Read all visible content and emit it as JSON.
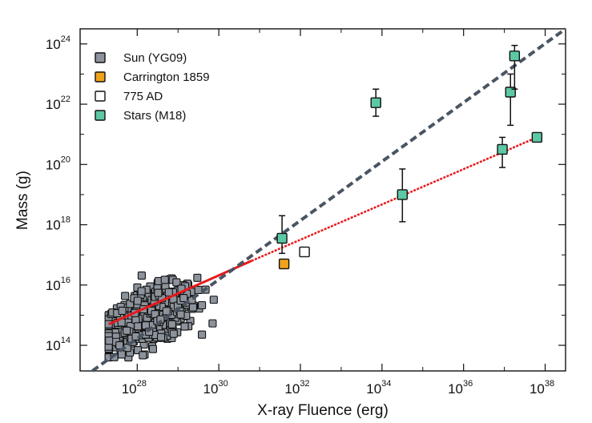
{
  "chart_data": {
    "type": "scatter",
    "xlabel": "X-ray Fluence (erg)",
    "ylabel": "Mass (g)",
    "x_scale": "log",
    "y_scale": "log",
    "xlim_log10": [
      26.6,
      38.5
    ],
    "ylim_log10": [
      13.15,
      24.5
    ],
    "x_ticks": [
      {
        "base": "10",
        "exp": "28",
        "v": 28
      },
      {
        "base": "10",
        "exp": "30",
        "v": 30
      },
      {
        "base": "10",
        "exp": "32",
        "v": 32
      },
      {
        "base": "10",
        "exp": "34",
        "v": 34
      },
      {
        "base": "10",
        "exp": "36",
        "v": 36
      },
      {
        "base": "10",
        "exp": "38",
        "v": 38
      }
    ],
    "y_ticks": [
      {
        "base": "10",
        "exp": "14",
        "v": 14
      },
      {
        "base": "10",
        "exp": "16",
        "v": 16
      },
      {
        "base": "10",
        "exp": "18",
        "v": 18
      },
      {
        "base": "10",
        "exp": "20",
        "v": 20
      },
      {
        "base": "10",
        "exp": "22",
        "v": 22
      },
      {
        "base": "10",
        "exp": "24",
        "v": 24
      }
    ],
    "legend_position": "top-left",
    "legend": [
      {
        "label": "Sun (YG09)",
        "color": "#8d939c"
      },
      {
        "label": "Carrington 1859",
        "color": "#f0a21c"
      },
      {
        "label": "775 AD",
        "color": "#ffffff"
      },
      {
        "label": "Stars (M18)",
        "color": "#5cc9a4"
      }
    ],
    "series": [
      {
        "name": "Sun (YG09)",
        "color": "#8d939c",
        "cluster_center_log": [
          28.35,
          14.95
        ],
        "n_points": 520,
        "log_x_range": [
          27.3,
          30.9
        ],
        "log_y_range": [
          13.6,
          16.8
        ],
        "correlation_slope": 0.45
      },
      {
        "name": "Carrington 1859",
        "color": "#f0a21c",
        "points_log": [
          [
            31.6,
            16.7
          ]
        ]
      },
      {
        "name": "775 AD",
        "color": "#ffffff",
        "points_log": [
          [
            32.1,
            17.1
          ]
        ]
      },
      {
        "name": "Stars (M18)",
        "color": "#5cc9a4",
        "points_log": [
          {
            "x": 31.55,
            "y": 17.55,
            "y_lo": 17.05,
            "y_hi": 18.3
          },
          {
            "x": 33.85,
            "y": 22.05,
            "y_lo": 21.6,
            "y_hi": 22.5
          },
          {
            "x": 34.5,
            "y": 19.0,
            "y_lo": 18.1,
            "y_hi": 19.85
          },
          {
            "x": 36.95,
            "y": 20.5,
            "y_lo": 19.9,
            "y_hi": 20.9
          },
          {
            "x": 37.15,
            "y": 22.4,
            "y_lo": 21.3,
            "y_hi": 23.0
          },
          {
            "x": 37.25,
            "y": 23.6,
            "y_lo": 22.5,
            "y_hi": 23.95
          },
          {
            "x": 37.8,
            "y": 20.9,
            "y_lo": null,
            "y_hi": null
          }
        ]
      }
    ],
    "fit_lines": [
      {
        "style": "solid",
        "color": "#e8191b",
        "from_log": [
          27.3,
          14.7
        ],
        "to_log": [
          30.8,
          16.8
        ]
      },
      {
        "style": "dotted",
        "color": "#e8191b",
        "from_log": [
          30.8,
          16.8
        ],
        "to_log": [
          37.8,
          20.9
        ]
      },
      {
        "style": "dashed",
        "color": "#4a5563",
        "from_log": [
          26.9,
          13.15
        ],
        "to_log": [
          38.5,
          24.5
        ]
      }
    ]
  }
}
